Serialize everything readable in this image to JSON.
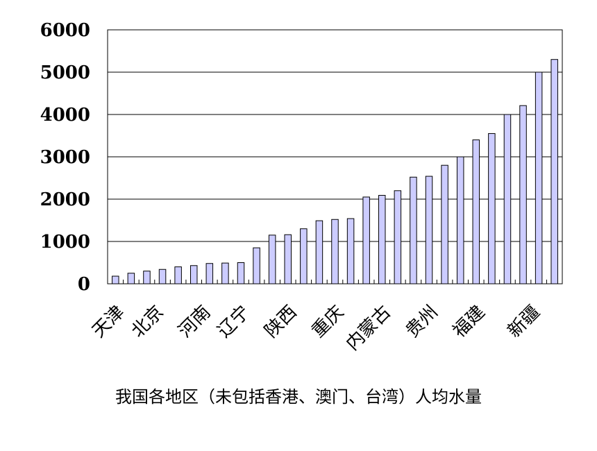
{
  "chart_data": {
    "type": "bar",
    "title": "我国各地区（未包括香港、澳门、台湾）人均水量",
    "xlabel": "",
    "ylabel": "",
    "ylim": [
      0,
      6000
    ],
    "yticks": [
      0,
      1000,
      2000,
      3000,
      4000,
      5000,
      6000
    ],
    "grid": true,
    "legend": "none",
    "bar_color": "#ccccff",
    "bar_stroke": "#000000",
    "categories": [
      "",
      "",
      "",
      "",
      "",
      "",
      "",
      "",
      "",
      "",
      "",
      "",
      "",
      "",
      "",
      "",
      "",
      "",
      "",
      "",
      "",
      "",
      "",
      "",
      "",
      "",
      "",
      "",
      ""
    ],
    "values": [
      180,
      250,
      300,
      340,
      400,
      430,
      480,
      490,
      500,
      850,
      1150,
      1160,
      1300,
      1490,
      1520,
      1540,
      2050,
      2090,
      2200,
      2520,
      2540,
      2800,
      3000,
      3400,
      3550,
      4000,
      4210,
      5000,
      5300
    ],
    "xtick_labels": [
      {
        "text": "天津",
        "index": 0
      },
      {
        "text": "北京",
        "index": 2.5
      },
      {
        "text": "河南",
        "index": 5.5
      },
      {
        "text": "辽宁",
        "index": 8
      },
      {
        "text": "陕西",
        "index": 11
      },
      {
        "text": "重庆",
        "index": 14
      },
      {
        "text": "内蒙古",
        "index": 17
      },
      {
        "text": "贵州",
        "index": 20
      },
      {
        "text": "福建",
        "index": 23
      },
      {
        "text": "新疆",
        "index": 26.5
      }
    ]
  }
}
